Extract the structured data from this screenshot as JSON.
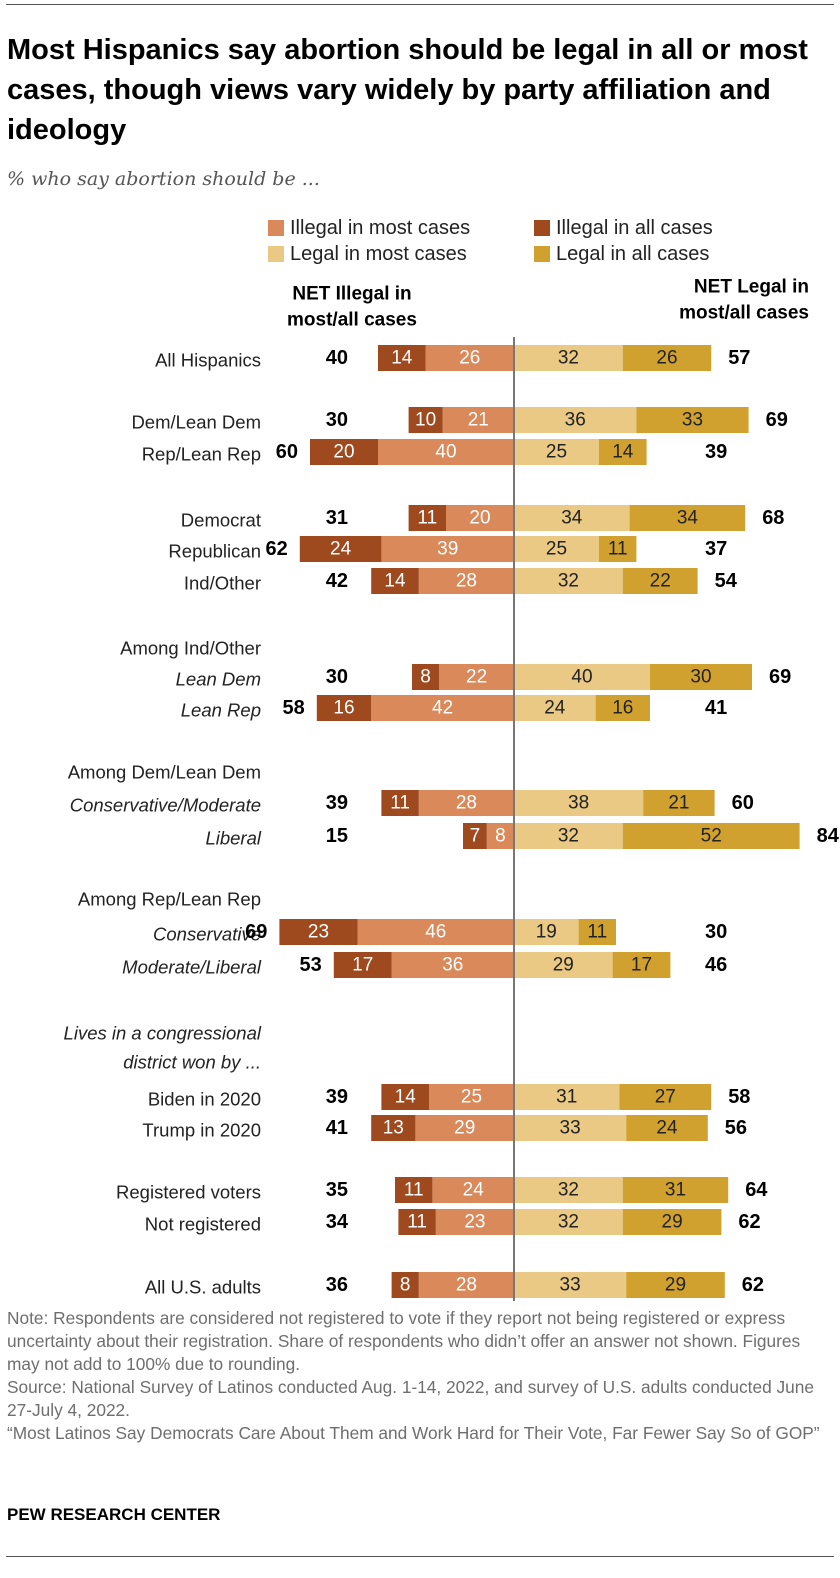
{
  "title": "Most Hispanics say abortion should be legal in all or most cases, though views vary widely by party affiliation and ideology",
  "subtitle": "% who say abortion should be ...",
  "notes": {
    "note": "Note: Respondents are considered not registered to vote if they report not being registered or express uncertainty about their registration. Share of respondents who didn’t offer an answer not shown. Figures may not add to 100% due to rounding.",
    "source": "Source: National Survey of Latinos conducted Aug. 1-14, 2022, and survey of U.S. adults conducted June 27-July 4, 2022.",
    "report": "“Most Latinos Say Democrats Care About Them and Work Hard for Their Vote, Far Fewer Say So of GOP”"
  },
  "footer": {
    "org": "PEW RESEARCH CENTER"
  },
  "chart_data": {
    "type": "bar",
    "orientation": "horizontal",
    "layout": "diverging",
    "legend": [
      {
        "name": "Illegal in most cases",
        "color": "#d9895a"
      },
      {
        "name": "Illegal in all cases",
        "color": "#9e4a1e"
      },
      {
        "name": "Legal in most cases",
        "color": "#e9c983"
      },
      {
        "name": "Legal in all cases",
        "color": "#d1a12f"
      }
    ],
    "net_labels": {
      "left": [
        "NET Illegal in",
        "most/all cases"
      ],
      "right": [
        "NET Legal in",
        "most/all cases"
      ]
    },
    "colors": {
      "illegal_all": "#9e4a1e",
      "illegal_most": "#d9895a",
      "legal_most": "#e9c983",
      "legal_all": "#d1a12f",
      "axis": "#777777"
    },
    "series": [
      {
        "name": "Illegal in all cases",
        "values": [
          14,
          10,
          20,
          11,
          24,
          14,
          8,
          16,
          11,
          7,
          23,
          17,
          14,
          13,
          11,
          11,
          8
        ]
      },
      {
        "name": "Illegal in most cases",
        "values": [
          26,
          21,
          40,
          20,
          39,
          28,
          22,
          42,
          28,
          8,
          46,
          36,
          25,
          29,
          24,
          23,
          28
        ]
      },
      {
        "name": "Legal in most cases",
        "values": [
          32,
          36,
          25,
          34,
          25,
          32,
          40,
          24,
          38,
          32,
          19,
          29,
          31,
          33,
          32,
          32,
          33
        ]
      },
      {
        "name": "Legal in all cases",
        "values": [
          26,
          33,
          14,
          34,
          11,
          22,
          30,
          16,
          21,
          52,
          11,
          17,
          27,
          24,
          31,
          29,
          29
        ]
      },
      {
        "name": "NET Illegal in most/all cases",
        "values": [
          40,
          30,
          60,
          31,
          62,
          42,
          30,
          58,
          39,
          15,
          69,
          53,
          39,
          41,
          35,
          34,
          36
        ]
      },
      {
        "name": "NET Legal in most/all cases",
        "values": [
          57,
          69,
          39,
          68,
          37,
          54,
          69,
          41,
          60,
          84,
          30,
          46,
          58,
          56,
          64,
          62,
          62
        ]
      }
    ],
    "headers": [
      {
        "text": "Among Ind/Other",
        "italic": false
      },
      {
        "text": "Among Dem/Lean Dem",
        "italic": false
      },
      {
        "text": "Among Rep/Lean Rep",
        "italic": false
      },
      {
        "text": "Lives in a congressional",
        "italic": true
      },
      {
        "text": "district won by ...",
        "italic": true
      }
    ],
    "rows": [
      {
        "label": "All Hispanics",
        "italic": false
      },
      {
        "label": "Dem/Lean Dem",
        "italic": false
      },
      {
        "label": "Rep/Lean Rep",
        "italic": false
      },
      {
        "label": "Democrat",
        "italic": false
      },
      {
        "label": "Republican",
        "italic": false
      },
      {
        "label": "Ind/Other",
        "italic": false
      },
      {
        "label": "Lean Dem",
        "italic": true
      },
      {
        "label": "Lean Rep",
        "italic": true
      },
      {
        "label": "Conservative/Moderate",
        "italic": true
      },
      {
        "label": "Liberal",
        "italic": true
      },
      {
        "label": "Conservative",
        "italic": true
      },
      {
        "label": "Moderate/Liberal",
        "italic": true
      },
      {
        "label": "Biden in 2020",
        "italic": false
      },
      {
        "label": "Trump in 2020",
        "italic": false
      },
      {
        "label": "Registered voters",
        "italic": false
      },
      {
        "label": "Not registered",
        "italic": false
      },
      {
        "label": "All U.S. adults",
        "italic": false
      }
    ]
  }
}
